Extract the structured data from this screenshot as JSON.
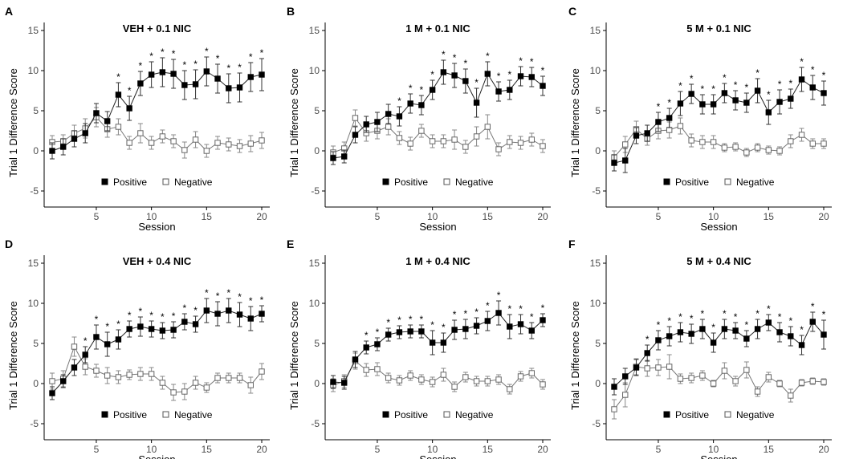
{
  "figure": {
    "legend": {
      "positive": "Positive",
      "negative": "Negative"
    },
    "colors": {
      "positive": "#000000",
      "negative": "#ffffff",
      "line": "#555555",
      "axis": "#000000"
    }
  },
  "chart_data": [
    {
      "type": "line",
      "panel_letter": "A",
      "title": "VEH + 0.1 NIC",
      "xlabel": "Session",
      "ylabel": "Trial 1 Difference Score",
      "xlim": [
        1,
        20
      ],
      "ylim": [
        -7,
        16
      ],
      "xticks": [
        "5",
        "10",
        "15",
        "20"
      ],
      "yticks": [
        "-5",
        "0",
        "5",
        "10",
        "15"
      ],
      "x": [
        1,
        2,
        3,
        4,
        5,
        6,
        7,
        8,
        9,
        10,
        11,
        12,
        13,
        14,
        15,
        16,
        17,
        18,
        19,
        20
      ],
      "series": [
        {
          "name": "Positive",
          "values": [
            0.0,
            0.5,
            1.5,
            2.2,
            4.7,
            3.7,
            7.0,
            5.3,
            8.4,
            9.5,
            9.8,
            9.6,
            8.2,
            8.3,
            9.9,
            9.0,
            7.8,
            7.9,
            9.2,
            9.5
          ],
          "errors": [
            1.0,
            1.0,
            1.0,
            1.2,
            1.2,
            1.2,
            1.5,
            1.5,
            1.5,
            1.6,
            1.8,
            1.8,
            1.8,
            1.8,
            1.8,
            1.8,
            1.8,
            1.8,
            1.8,
            2.0
          ]
        },
        {
          "name": "Negative",
          "values": [
            1.1,
            1.2,
            2.2,
            2.8,
            4.2,
            2.7,
            3.0,
            1.0,
            2.2,
            1.0,
            1.8,
            1.2,
            0.1,
            1.4,
            0.0,
            1.0,
            0.8,
            0.6,
            0.9,
            1.3
          ],
          "errors": [
            0.8,
            0.8,
            1.0,
            1.2,
            1.2,
            1.0,
            1.0,
            0.8,
            1.2,
            0.8,
            0.8,
            0.8,
            1.0,
            1.0,
            0.8,
            0.8,
            0.8,
            0.8,
            1.0,
            1.0
          ]
        }
      ],
      "significance": [
        7,
        8,
        9,
        10,
        11,
        12,
        13,
        14,
        15,
        16,
        17,
        18,
        19,
        20
      ],
      "significance_label": "*"
    },
    {
      "type": "line",
      "panel_letter": "B",
      "title": "1 M + 0.1 NIC",
      "xlabel": "Session",
      "ylabel": "Trial 1 Difference Score",
      "xlim": [
        1,
        20
      ],
      "ylim": [
        -7,
        16
      ],
      "xticks": [
        "5",
        "10",
        "15",
        "20"
      ],
      "yticks": [
        "-5",
        "0",
        "5",
        "10",
        "15"
      ],
      "x": [
        1,
        2,
        3,
        4,
        5,
        6,
        7,
        8,
        9,
        10,
        11,
        12,
        13,
        14,
        15,
        16,
        17,
        18,
        19,
        20
      ],
      "series": [
        {
          "name": "Positive",
          "values": [
            -0.9,
            -0.7,
            2.0,
            3.3,
            3.6,
            4.6,
            4.3,
            5.9,
            5.7,
            7.6,
            9.8,
            9.4,
            8.7,
            6.0,
            9.6,
            7.4,
            7.6,
            9.3,
            9.2,
            8.1
          ],
          "errors": [
            0.8,
            0.8,
            1.0,
            1.0,
            1.2,
            1.2,
            1.2,
            1.2,
            1.2,
            1.2,
            1.5,
            1.5,
            1.5,
            1.8,
            1.5,
            1.2,
            1.2,
            1.2,
            1.2,
            1.2
          ]
        },
        {
          "name": "Negative",
          "values": [
            -0.2,
            0.3,
            4.1,
            2.2,
            2.5,
            3.0,
            1.6,
            0.9,
            2.5,
            1.2,
            1.2,
            1.4,
            0.5,
            1.8,
            3.0,
            0.2,
            1.1,
            1.0,
            1.4,
            0.6
          ],
          "errors": [
            0.8,
            0.8,
            1.0,
            1.0,
            1.0,
            1.0,
            0.8,
            0.8,
            0.8,
            0.8,
            0.8,
            1.2,
            0.8,
            1.2,
            1.5,
            0.8,
            0.8,
            0.8,
            0.8,
            0.8
          ]
        }
      ],
      "significance": [
        7,
        8,
        9,
        10,
        11,
        12,
        13,
        14,
        15,
        16,
        17,
        18,
        19,
        20
      ],
      "significance_label": "*"
    },
    {
      "type": "line",
      "panel_letter": "C",
      "title": "5 M + 0.1 NIC",
      "xlabel": "Session",
      "ylabel": "Trial 1 Difference Score",
      "xlim": [
        1,
        20
      ],
      "ylim": [
        -7,
        16
      ],
      "xticks": [
        "5",
        "10",
        "15",
        "20"
      ],
      "yticks": [
        "-5",
        "0",
        "5",
        "10",
        "15"
      ],
      "x": [
        1,
        2,
        3,
        4,
        5,
        6,
        7,
        8,
        9,
        10,
        11,
        12,
        13,
        14,
        15,
        16,
        17,
        18,
        19,
        20
      ],
      "series": [
        {
          "name": "Positive",
          "values": [
            -1.5,
            -1.2,
            1.9,
            2.2,
            3.6,
            4.1,
            5.9,
            7.1,
            5.8,
            5.8,
            7.2,
            6.3,
            6.0,
            7.5,
            4.8,
            6.1,
            6.5,
            8.9,
            7.9,
            7.2
          ],
          "errors": [
            1.0,
            1.5,
            1.0,
            1.0,
            1.2,
            1.2,
            1.5,
            1.2,
            1.2,
            1.2,
            1.2,
            1.2,
            1.2,
            1.5,
            1.5,
            1.5,
            1.2,
            1.5,
            1.5,
            1.5
          ]
        },
        {
          "name": "Negative",
          "values": [
            -0.8,
            0.8,
            2.7,
            1.5,
            2.5,
            2.6,
            3.1,
            1.3,
            1.1,
            1.1,
            0.4,
            0.5,
            -0.2,
            0.4,
            0.1,
            0.0,
            1.2,
            2.0,
            0.9,
            0.9
          ],
          "errors": [
            0.8,
            1.0,
            1.0,
            0.8,
            1.0,
            1.0,
            1.0,
            0.8,
            0.8,
            0.8,
            0.5,
            0.5,
            0.5,
            0.5,
            0.5,
            0.5,
            0.8,
            0.8,
            0.6,
            0.6
          ]
        }
      ],
      "significance": [
        5,
        6,
        7,
        8,
        9,
        10,
        11,
        12,
        13,
        14,
        15,
        16,
        17,
        18,
        19,
        20
      ],
      "significance_label": "*"
    },
    {
      "type": "line",
      "panel_letter": "D",
      "title": "VEH + 0.4 NIC",
      "xlabel": "Session",
      "ylabel": "Trial 1 Difference Score",
      "xlim": [
        1,
        20
      ],
      "ylim": [
        -7,
        16
      ],
      "xticks": [
        "5",
        "10",
        "15",
        "20"
      ],
      "yticks": [
        "-5",
        "0",
        "5",
        "10",
        "15"
      ],
      "x": [
        1,
        2,
        3,
        4,
        5,
        6,
        7,
        8,
        9,
        10,
        11,
        12,
        13,
        14,
        15,
        16,
        17,
        18,
        19,
        20
      ],
      "series": [
        {
          "name": "Positive",
          "values": [
            -1.2,
            0.3,
            2.0,
            3.6,
            5.8,
            4.9,
            5.5,
            6.8,
            7.1,
            6.8,
            6.6,
            6.7,
            7.7,
            7.4,
            9.1,
            8.7,
            9.1,
            8.6,
            8.1,
            8.7
          ],
          "errors": [
            0.8,
            0.8,
            1.0,
            1.0,
            1.5,
            1.5,
            1.2,
            1.0,
            1.2,
            1.0,
            1.0,
            1.0,
            1.0,
            1.0,
            1.5,
            1.5,
            1.5,
            1.5,
            1.5,
            1.0
          ]
        },
        {
          "name": "Negative",
          "values": [
            0.3,
            0.6,
            4.6,
            2.1,
            1.6,
            1.0,
            0.8,
            1.1,
            1.2,
            1.2,
            0.1,
            -1.1,
            -1.0,
            0.1,
            -0.5,
            0.7,
            0.7,
            0.7,
            -0.2,
            1.5
          ],
          "errors": [
            1.0,
            1.0,
            1.2,
            1.0,
            0.8,
            1.0,
            0.8,
            0.6,
            0.8,
            0.8,
            0.8,
            1.0,
            1.0,
            0.8,
            0.6,
            0.6,
            0.6,
            0.6,
            1.0,
            1.0
          ]
        }
      ],
      "significance": [
        4,
        5,
        6,
        7,
        8,
        9,
        10,
        11,
        12,
        13,
        14,
        15,
        16,
        17,
        18,
        19,
        20
      ],
      "significance_label": "*"
    },
    {
      "type": "line",
      "panel_letter": "E",
      "title": "1 M + 0.4 NIC",
      "xlabel": "Session",
      "ylabel": "Trial 1 Difference Score",
      "xlim": [
        1,
        20
      ],
      "ylim": [
        -7,
        16
      ],
      "xticks": [
        "5",
        "10",
        "15",
        "20"
      ],
      "yticks": [
        "-5",
        "0",
        "5",
        "10",
        "15"
      ],
      "x": [
        1,
        2,
        3,
        4,
        5,
        6,
        7,
        8,
        9,
        10,
        11,
        12,
        13,
        14,
        15,
        16,
        17,
        18,
        19,
        20
      ],
      "series": [
        {
          "name": "Positive",
          "values": [
            0.2,
            0.1,
            3.0,
            4.5,
            4.9,
            6.1,
            6.4,
            6.5,
            6.5,
            5.1,
            5.1,
            6.7,
            6.8,
            7.2,
            7.8,
            8.8,
            7.1,
            7.4,
            6.6,
            7.9
          ],
          "errors": [
            0.8,
            0.8,
            1.0,
            0.8,
            0.8,
            0.8,
            0.8,
            0.8,
            0.8,
            1.5,
            1.2,
            1.2,
            1.2,
            1.0,
            1.2,
            1.5,
            1.5,
            1.2,
            1.0,
            0.8
          ]
        },
        {
          "name": "Negative",
          "values": [
            -0.2,
            0.3,
            2.8,
            1.7,
            1.8,
            0.7,
            0.4,
            1.0,
            0.5,
            0.2,
            1.1,
            -0.4,
            0.8,
            0.3,
            0.3,
            0.5,
            -0.7,
            0.9,
            1.3,
            -0.1
          ],
          "errors": [
            0.8,
            0.8,
            1.0,
            0.8,
            0.8,
            0.6,
            0.6,
            0.6,
            0.6,
            0.6,
            0.8,
            0.6,
            0.6,
            0.6,
            0.6,
            0.6,
            0.6,
            0.6,
            0.6,
            0.6
          ]
        }
      ],
      "significance": [
        4,
        5,
        6,
        7,
        8,
        9,
        10,
        11,
        12,
        13,
        14,
        15,
        16,
        17,
        18,
        19,
        20
      ],
      "significance_label": "*"
    },
    {
      "type": "line",
      "panel_letter": "F",
      "title": "5 M + 0.4 NIC",
      "xlabel": "Session",
      "ylabel": "Trial 1 Difference Score",
      "xlim": [
        1,
        20
      ],
      "ylim": [
        -7,
        16
      ],
      "xticks": [
        "5",
        "10",
        "15",
        "20"
      ],
      "yticks": [
        "-5",
        "0",
        "5",
        "10",
        "15"
      ],
      "x": [
        1,
        2,
        3,
        4,
        5,
        6,
        7,
        8,
        9,
        10,
        11,
        12,
        13,
        14,
        15,
        16,
        17,
        18,
        19,
        20
      ],
      "series": [
        {
          "name": "Positive",
          "values": [
            -0.4,
            0.9,
            2.0,
            3.8,
            5.4,
            5.9,
            6.4,
            6.2,
            6.8,
            5.1,
            6.8,
            6.6,
            5.6,
            6.8,
            7.6,
            6.4,
            5.9,
            4.8,
            7.7,
            6.1
          ],
          "errors": [
            1.0,
            1.0,
            1.0,
            1.0,
            1.2,
            1.2,
            1.2,
            1.2,
            1.2,
            1.2,
            1.2,
            1.0,
            1.0,
            1.2,
            1.0,
            1.2,
            1.2,
            1.2,
            1.2,
            1.8
          ]
        },
        {
          "name": "Negative",
          "values": [
            -3.2,
            -1.4,
            2.1,
            1.9,
            2.0,
            2.1,
            0.6,
            0.7,
            1.0,
            0.0,
            1.6,
            0.3,
            1.7,
            -1.0,
            0.8,
            0.0,
            -1.5,
            0.1,
            0.3,
            0.2
          ],
          "errors": [
            1.2,
            1.5,
            1.0,
            1.0,
            1.0,
            1.5,
            0.6,
            0.6,
            0.6,
            0.4,
            1.0,
            0.6,
            1.0,
            0.6,
            0.6,
            0.4,
            0.8,
            0.4,
            0.4,
            0.4
          ]
        }
      ],
      "significance": [
        4,
        5,
        6,
        7,
        8,
        9,
        10,
        11,
        12,
        13,
        14,
        15,
        16,
        17,
        18,
        19,
        20
      ],
      "significance_label": "*"
    }
  ]
}
